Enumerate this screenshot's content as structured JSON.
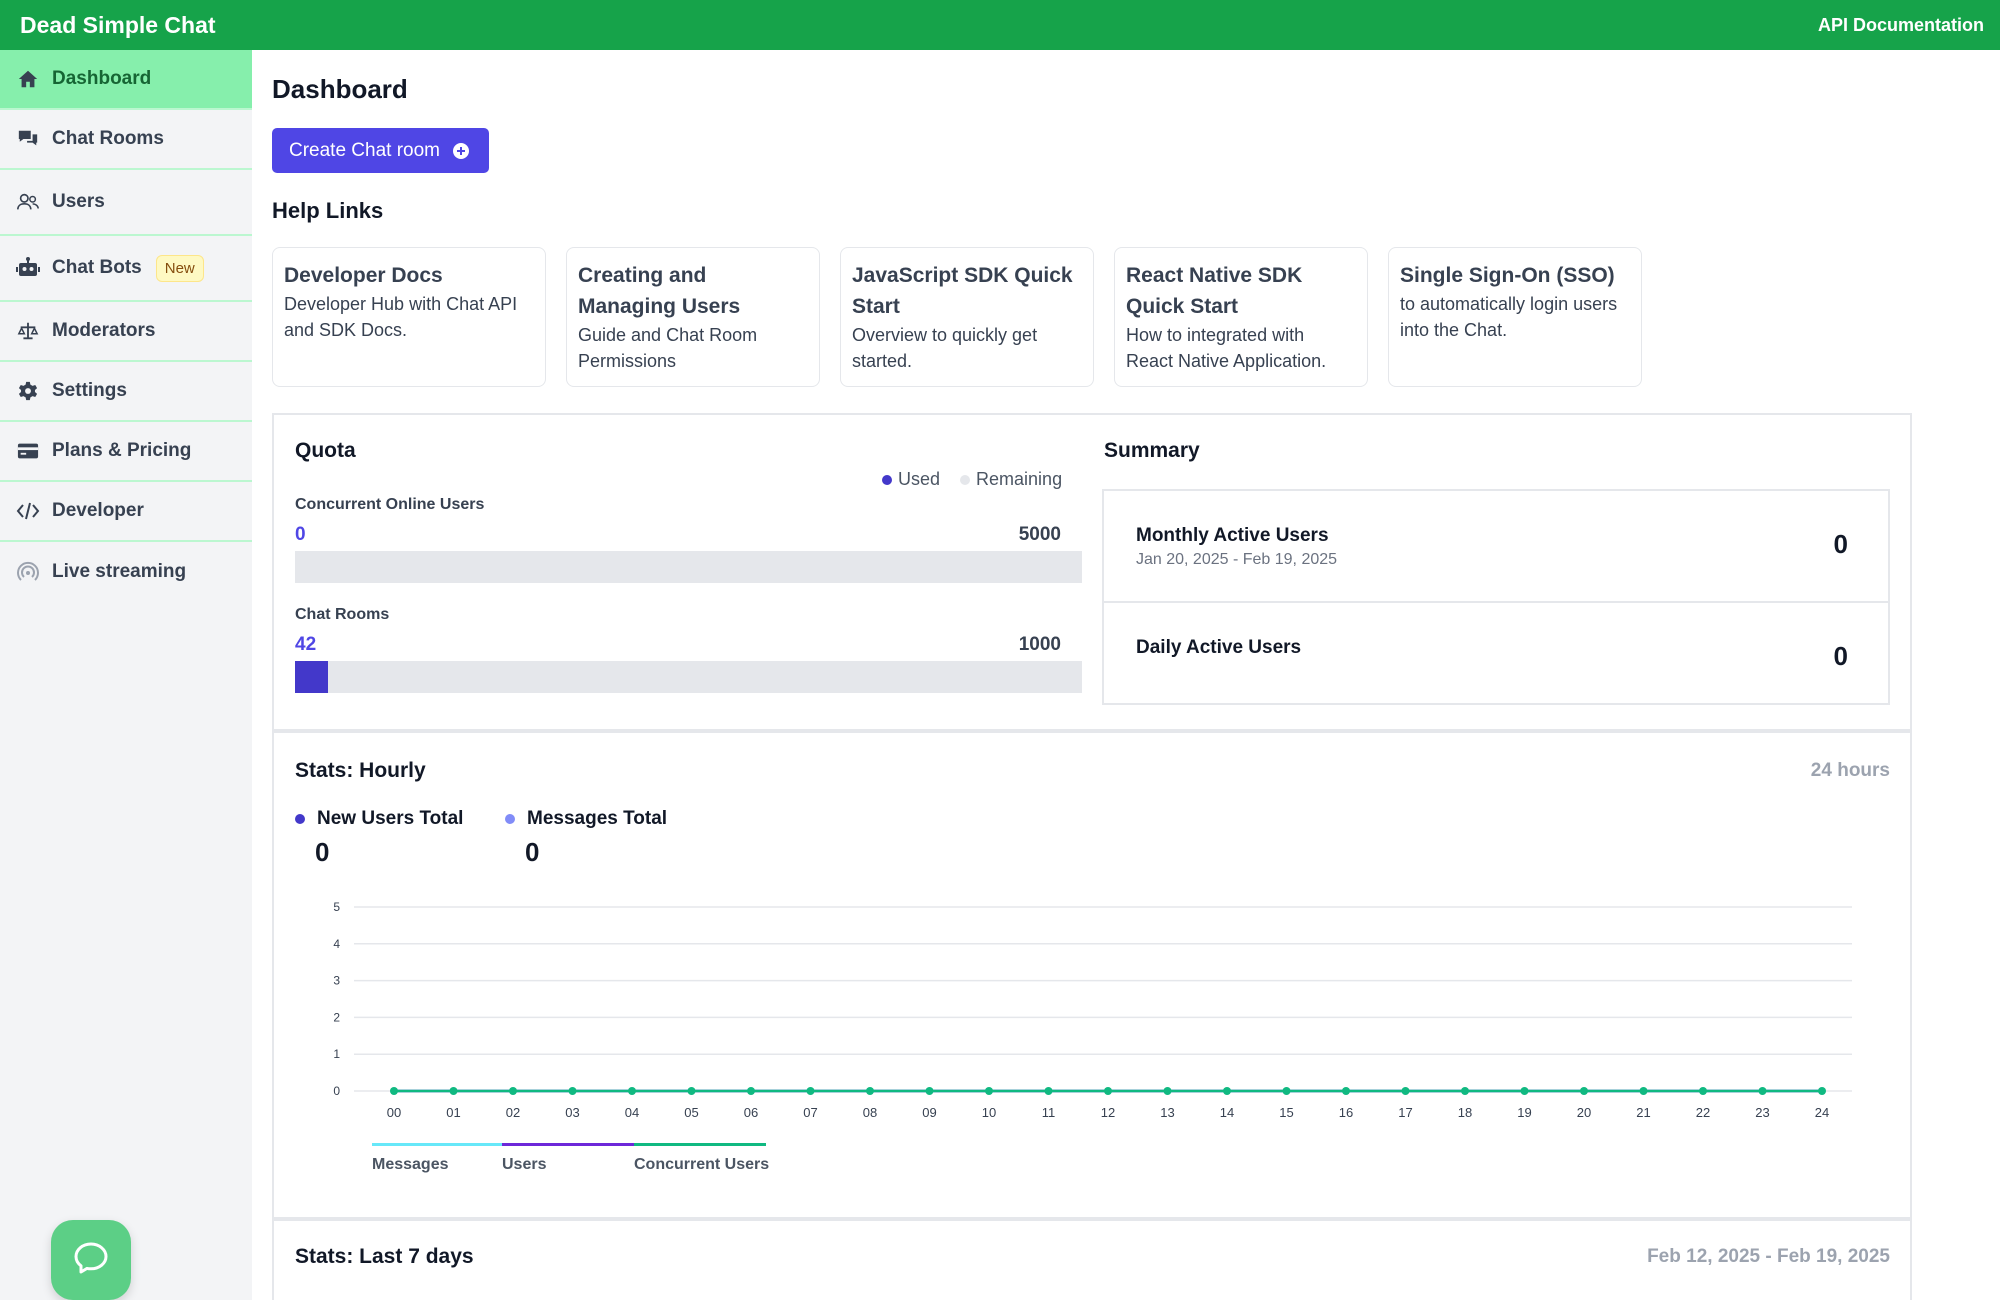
{
  "app": {
    "title": "Dead Simple Chat",
    "api_link": "API Documentation"
  },
  "sidebar": {
    "items": [
      {
        "label": "Dashboard",
        "icon": "home-icon"
      },
      {
        "label": "Chat Rooms",
        "icon": "chat-bubbles-icon"
      },
      {
        "label": "Users",
        "icon": "users-icon"
      },
      {
        "label": "Chat Bots",
        "icon": "robot-icon",
        "badge": "New"
      },
      {
        "label": "Moderators",
        "icon": "scale-icon"
      },
      {
        "label": "Settings",
        "icon": "gear-icon"
      },
      {
        "label": "Plans & Pricing",
        "icon": "credit-card-icon"
      },
      {
        "label": "Developer",
        "icon": "code-icon"
      },
      {
        "label": "Live streaming",
        "icon": "broadcast-icon"
      }
    ]
  },
  "page": {
    "title": "Dashboard",
    "create_button": "Create Chat room",
    "help_title": "Help Links"
  },
  "help_links": [
    {
      "title": "Developer Docs",
      "desc": "Developer Hub with Chat API and SDK Docs."
    },
    {
      "title": "Creating and Managing Users",
      "desc": "Guide and Chat Room Permissions"
    },
    {
      "title": "JavaScript SDK Quick Start",
      "desc": "Overview to quickly get started."
    },
    {
      "title": "React Native SDK Quick Start",
      "desc": "How to integrated with React Native Application."
    },
    {
      "title": "Single Sign-On (SSO)",
      "desc": "to automatically login users into the Chat."
    }
  ],
  "quota": {
    "title": "Quota",
    "legend_used": "Used",
    "legend_remaining": "Remaining",
    "items": [
      {
        "label": "Concurrent Online Users",
        "used": "0",
        "max": "5000",
        "used_value": 0,
        "max_value": 5000
      },
      {
        "label": "Chat Rooms",
        "used": "42",
        "max": "1000",
        "used_value": 42,
        "max_value": 1000
      }
    ]
  },
  "summary": {
    "title": "Summary",
    "monthly_label": "Monthly Active Users",
    "monthly_range": "Jan 20, 2025 - Feb 19, 2025",
    "monthly_value": "0",
    "daily_label": "Daily Active Users",
    "daily_value": "0"
  },
  "stats_hourly": {
    "title": "Stats: Hourly",
    "range": "24 hours",
    "new_users_label": "New Users Total",
    "new_users_value": "0",
    "messages_label": "Messages Total",
    "messages_value": "0"
  },
  "stats_week": {
    "title": "Stats: Last 7 days",
    "range": "Feb 12, 2025 - Feb 19, 2025"
  },
  "colors": {
    "brand": "#16a34a",
    "accent": "#4f46e5",
    "series": "#10b981"
  },
  "chart_data": {
    "type": "line",
    "x": [
      "00",
      "01",
      "02",
      "03",
      "04",
      "05",
      "06",
      "07",
      "08",
      "09",
      "10",
      "11",
      "12",
      "13",
      "14",
      "15",
      "16",
      "17",
      "18",
      "19",
      "20",
      "21",
      "22",
      "23",
      "24"
    ],
    "y_ticks": [
      0,
      1,
      2,
      3,
      4,
      5
    ],
    "ylim": [
      0,
      5
    ],
    "series": [
      {
        "name": "Messages",
        "color": "#67e8f9",
        "values": [
          0,
          0,
          0,
          0,
          0,
          0,
          0,
          0,
          0,
          0,
          0,
          0,
          0,
          0,
          0,
          0,
          0,
          0,
          0,
          0,
          0,
          0,
          0,
          0,
          0
        ]
      },
      {
        "name": "Users",
        "color": "#6d28d9",
        "values": [
          0,
          0,
          0,
          0,
          0,
          0,
          0,
          0,
          0,
          0,
          0,
          0,
          0,
          0,
          0,
          0,
          0,
          0,
          0,
          0,
          0,
          0,
          0,
          0,
          0
        ]
      },
      {
        "name": "Concurrent Users",
        "color": "#10b981",
        "values": [
          0,
          0,
          0,
          0,
          0,
          0,
          0,
          0,
          0,
          0,
          0,
          0,
          0,
          0,
          0,
          0,
          0,
          0,
          0,
          0,
          0,
          0,
          0,
          0,
          0
        ]
      }
    ],
    "title": "",
    "xlabel": "",
    "ylabel": "",
    "grid": true,
    "legend": "bottom-left"
  }
}
